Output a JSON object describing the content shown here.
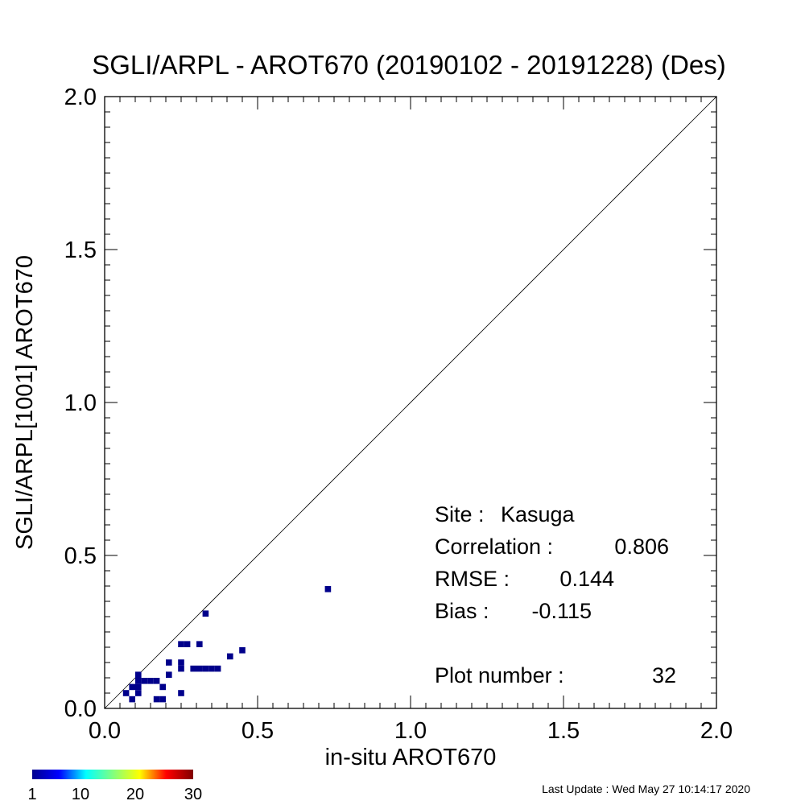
{
  "chart_data": {
    "type": "scatter",
    "title": "SGLI/ARPL - AROT670 (20190102 - 20191228) (Des)",
    "xlabel": "in-situ AROT670",
    "ylabel": "SGLI/ARPL[1001]    AROT670",
    "xlim": [
      0,
      2
    ],
    "ylim": [
      0,
      2
    ],
    "xticks": [
      "0.0",
      "0.5",
      "1.0",
      "1.5",
      "2.0"
    ],
    "yticks": [
      "0.0",
      "0.5",
      "1.0",
      "1.5",
      "2.0"
    ],
    "one_to_one_line": true,
    "point_color": "#00008b",
    "colorbar": {
      "ticks": [
        "1",
        "10",
        "20",
        "30"
      ],
      "colors": [
        "#00008f",
        "#0000ff",
        "#00ffff",
        "#80ff80",
        "#ffff00",
        "#ff0000",
        "#800000"
      ]
    },
    "points": [
      {
        "x": 0.07,
        "y": 0.05
      },
      {
        "x": 0.09,
        "y": 0.03
      },
      {
        "x": 0.09,
        "y": 0.07
      },
      {
        "x": 0.11,
        "y": 0.05
      },
      {
        "x": 0.11,
        "y": 0.07
      },
      {
        "x": 0.11,
        "y": 0.09
      },
      {
        "x": 0.11,
        "y": 0.11
      },
      {
        "x": 0.13,
        "y": 0.09
      },
      {
        "x": 0.15,
        "y": 0.09
      },
      {
        "x": 0.17,
        "y": 0.09
      },
      {
        "x": 0.17,
        "y": 0.03
      },
      {
        "x": 0.19,
        "y": 0.03
      },
      {
        "x": 0.19,
        "y": 0.07
      },
      {
        "x": 0.21,
        "y": 0.11
      },
      {
        "x": 0.21,
        "y": 0.15
      },
      {
        "x": 0.25,
        "y": 0.05
      },
      {
        "x": 0.25,
        "y": 0.13
      },
      {
        "x": 0.25,
        "y": 0.15
      },
      {
        "x": 0.25,
        "y": 0.21
      },
      {
        "x": 0.27,
        "y": 0.21
      },
      {
        "x": 0.29,
        "y": 0.13
      },
      {
        "x": 0.31,
        "y": 0.13
      },
      {
        "x": 0.31,
        "y": 0.21
      },
      {
        "x": 0.33,
        "y": 0.13
      },
      {
        "x": 0.33,
        "y": 0.31
      },
      {
        "x": 0.35,
        "y": 0.13
      },
      {
        "x": 0.37,
        "y": 0.13
      },
      {
        "x": 0.41,
        "y": 0.17
      },
      {
        "x": 0.45,
        "y": 0.19
      },
      {
        "x": 0.73,
        "y": 0.39
      }
    ],
    "stats": {
      "site_label": "Site :",
      "site": "Kasuga",
      "correlation_label": "Correlation :",
      "correlation": "0.806",
      "rmse_label": "RMSE :",
      "rmse": "0.144",
      "bias_label": "Bias :",
      "bias": "-0.115",
      "plot_number_label": "Plot number :",
      "plot_number": "32"
    }
  },
  "last_update": "Last Update : Wed May 27 10:14:17 2020"
}
